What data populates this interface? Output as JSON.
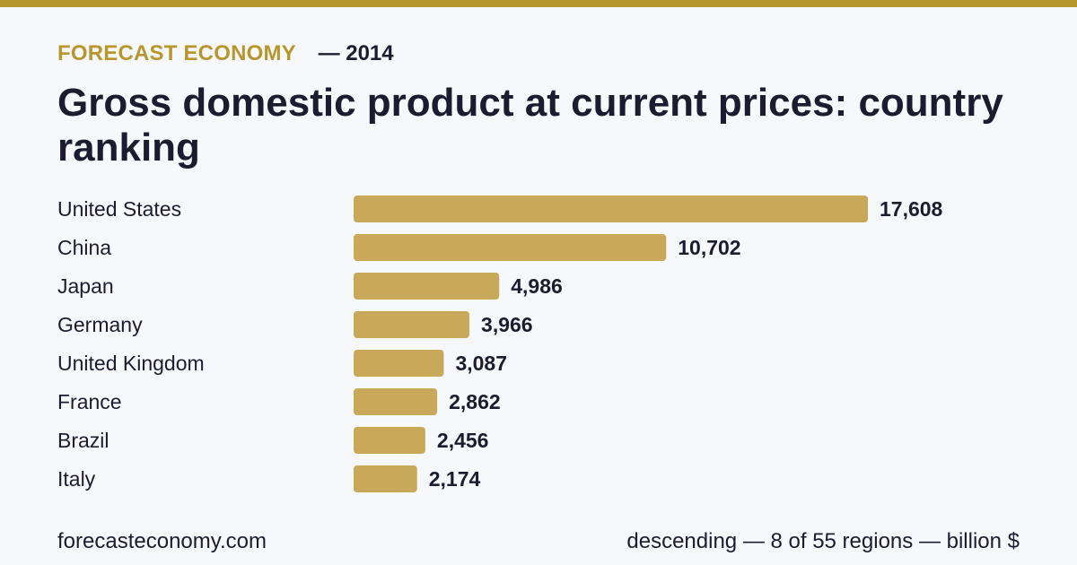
{
  "header": {
    "brand": "FORECAST ECONOMY",
    "year_label": "— 2014",
    "title": "Gross domestic product at current prices: country ranking"
  },
  "footer": {
    "site": "forecasteconomy.com",
    "note": "descending — 8 of 55 regions — billion $"
  },
  "colors": {
    "accent": "#b8962e",
    "bar": "#c8a95a",
    "text": "#1c1c2e",
    "background": "#f7f8fc"
  },
  "chart_data": {
    "type": "bar",
    "orientation": "horizontal",
    "categories": [
      "United States",
      "China",
      "Japan",
      "Germany",
      "United Kingdom",
      "France",
      "Brazil",
      "Italy"
    ],
    "values": [
      17608,
      10702,
      4986,
      3966,
      3087,
      2862,
      2456,
      2174
    ],
    "value_labels": [
      "17,608",
      "10,702",
      "4,986",
      "3,966",
      "3,087",
      "2,862",
      "2,456",
      "2,174"
    ],
    "xlim": [
      0,
      17608
    ],
    "grid": false,
    "legend": "none"
  }
}
